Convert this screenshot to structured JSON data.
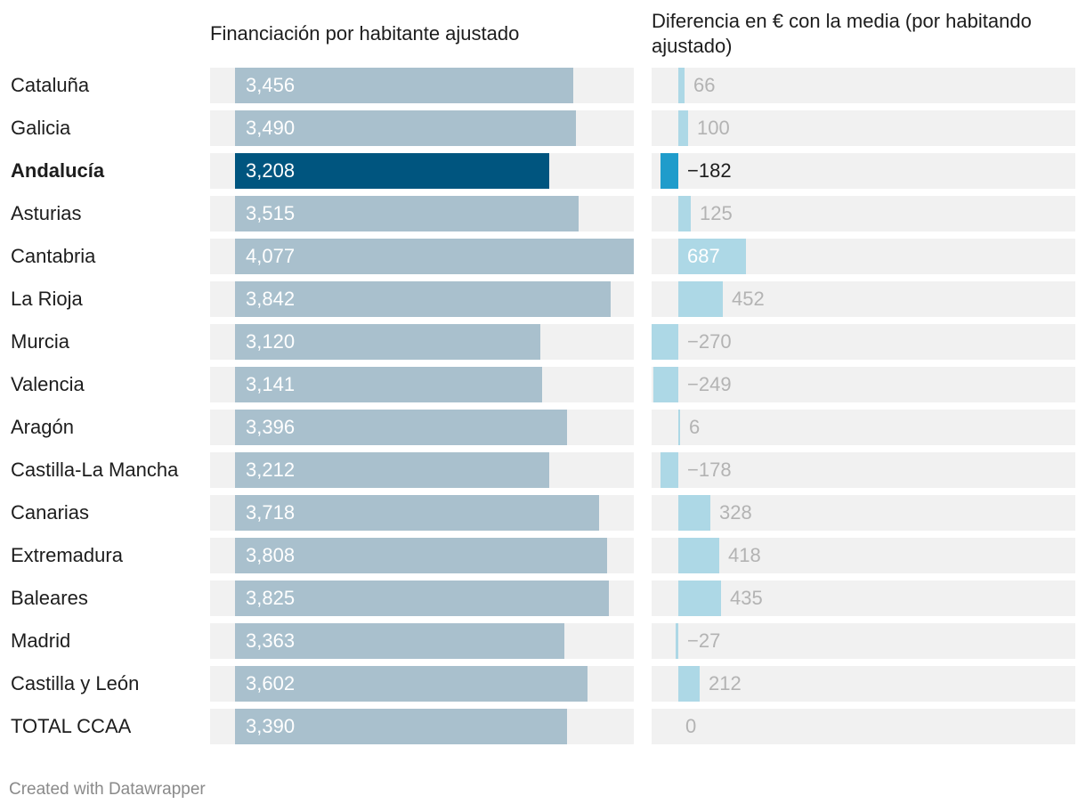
{
  "chart_data": {
    "type": "bar",
    "title": "",
    "columns": [
      "Financiación por habitante ajustado",
      "Diferencia en € con la media (por habitando ajustado)"
    ],
    "categories": [
      "Cataluña",
      "Galicia",
      "Andalucía",
      "Asturias",
      "Cantabria",
      "La Rioja",
      "Murcia",
      "Valencia",
      "Aragón",
      "Castilla-La Mancha",
      "Canarias",
      "Extremadura",
      "Baleares",
      "Madrid",
      "Castilla y León",
      "TOTAL CCAA"
    ],
    "highlight": "Andalucía",
    "series": [
      {
        "name": "Financiación por habitante ajustado",
        "values": [
          3456,
          3490,
          3208,
          3515,
          4077,
          3842,
          3120,
          3141,
          3396,
          3212,
          3718,
          3808,
          3825,
          3363,
          3602,
          3390
        ],
        "labels": [
          "3,456",
          "3,490",
          "3,208",
          "3,515",
          "4,077",
          "3,842",
          "3,120",
          "3,141",
          "3,396",
          "3,212",
          "3,718",
          "3,808",
          "3,825",
          "3,363",
          "3,602",
          "3,390"
        ],
        "xlim": [
          0,
          4077
        ]
      },
      {
        "name": "Diferencia en € con la media (por habitando ajustado)",
        "values": [
          66,
          100,
          -182,
          125,
          687,
          452,
          -270,
          -249,
          6,
          -178,
          328,
          418,
          435,
          -27,
          212,
          0
        ],
        "labels": [
          "66",
          "100",
          "−182",
          "125",
          "687",
          "452",
          "−270",
          "−249",
          "6",
          "−178",
          "328",
          "418",
          "435",
          "−27",
          "212",
          "0"
        ],
        "xlim": [
          -270,
          1600
        ]
      }
    ]
  },
  "colors": {
    "bar_left": "#a9c0cd",
    "bar_left_highlight": "#00557f",
    "bar_right": "#add8e6",
    "bar_right_highlight": "#1f9ccb",
    "track": "#f1f1f1",
    "label_muted": "#b3b3b3",
    "label_dark": "#1d1d1d",
    "label_light": "#ffffff"
  },
  "footer": {
    "credit": "Created with Datawrapper"
  }
}
